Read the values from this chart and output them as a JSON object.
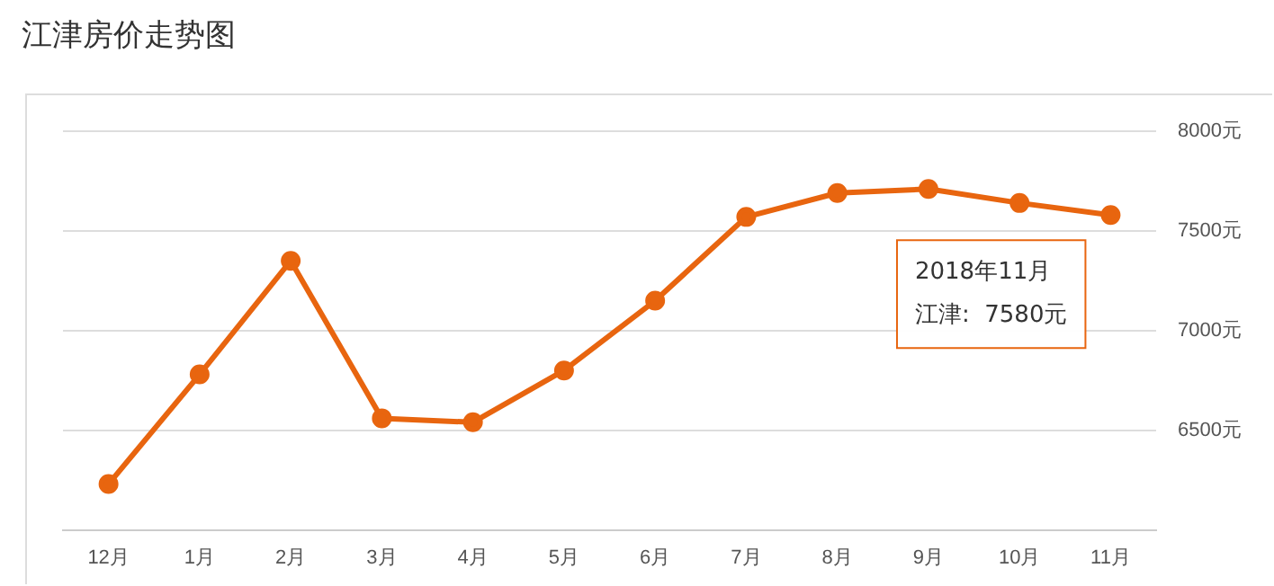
{
  "chart_data": {
    "type": "line",
    "title": "江津房价走势图",
    "categories": [
      "12月",
      "1月",
      "2月",
      "3月",
      "4月",
      "5月",
      "6月",
      "7月",
      "8月",
      "9月",
      "10月",
      "11月"
    ],
    "series": [
      {
        "color": "#e8650f",
        "values": [
          6230,
          6780,
          7350,
          6560,
          6540,
          6800,
          7150,
          7570,
          7690,
          7710,
          7640,
          7580
        ]
      }
    ],
    "ylim": [
      6000,
      8000
    ],
    "yticks": [
      {
        "value": 6500,
        "label": "6500元"
      },
      {
        "value": 7000,
        "label": "7000元"
      },
      {
        "value": 7500,
        "label": "7500元"
      },
      {
        "value": 8000,
        "label": "8000元"
      }
    ],
    "grid": "y",
    "legend": false,
    "marker": "circle",
    "line_style": "solid",
    "annotations": [
      "2018年11月",
      "江津:  7580元"
    ]
  }
}
